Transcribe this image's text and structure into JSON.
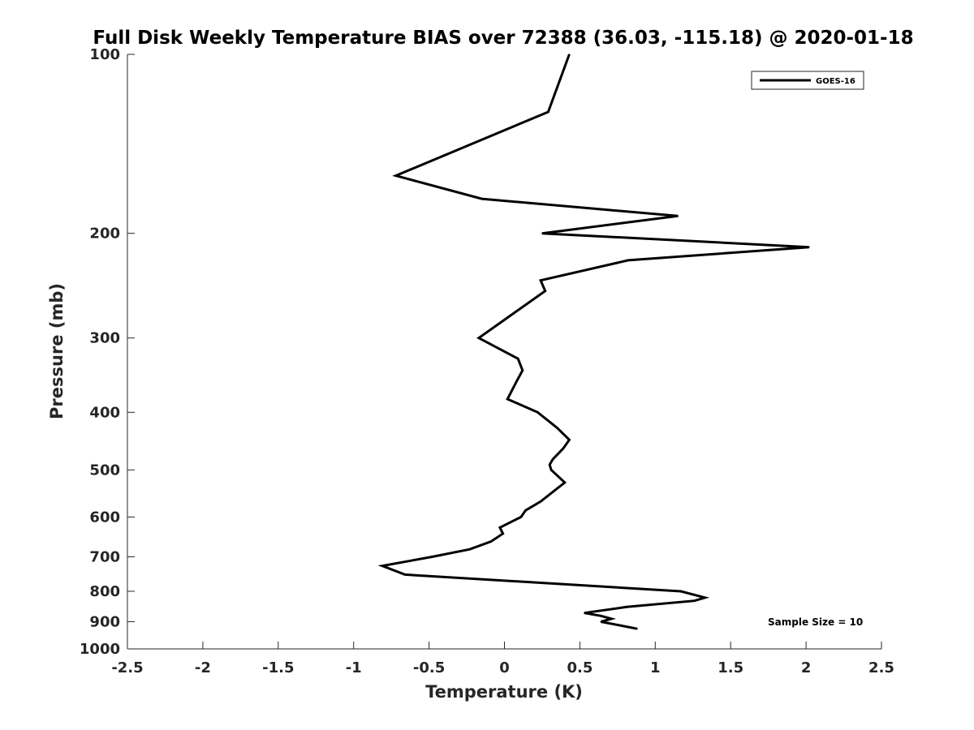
{
  "chart_data": {
    "type": "line",
    "title": "Full Disk Weekly Temperature BIAS over 72388 (36.03, -115.18) @ 2020-01-18",
    "xlabel": "Temperature (K)",
    "ylabel": "Pressure (mb)",
    "xlim": [
      -2.5,
      2.5
    ],
    "ylim": [
      1000,
      100
    ],
    "y_scale": "log",
    "y_reversed": true,
    "grid": false,
    "x_ticks": [
      -2.5,
      -2,
      -1.5,
      -1,
      -0.5,
      0,
      0.5,
      1,
      1.5,
      2,
      2.5
    ],
    "x_tick_labels": [
      "-2.5",
      "-2",
      "-1.5",
      "-1",
      "-0.5",
      "0",
      "0.5",
      "1",
      "1.5",
      "2",
      "2.5"
    ],
    "y_ticks": [
      100,
      200,
      300,
      400,
      500,
      600,
      700,
      800,
      900,
      1000
    ],
    "y_tick_labels": [
      "100",
      "200",
      "300",
      "400",
      "500",
      "600",
      "700",
      "800",
      "900",
      "1000"
    ],
    "legend": {
      "placement": "top-right",
      "entries": [
        "GOES-16"
      ]
    },
    "annotation": "Sample Size = 10",
    "series": [
      {
        "name": "GOES-16",
        "color": "#000000",
        "x": [
          0.43,
          0.29,
          -0.72,
          -0.15,
          1.15,
          0.25,
          2.02,
          0.82,
          0.24,
          0.27,
          -0.17,
          0.09,
          0.12,
          0.08,
          0.02,
          0.22,
          0.35,
          0.43,
          0.39,
          0.32,
          0.3,
          0.31,
          0.4,
          0.24,
          0.14,
          0.11,
          -0.03,
          -0.01,
          -0.09,
          -0.23,
          -0.48,
          -0.81,
          -0.66,
          1.17,
          1.33,
          1.26,
          0.81,
          0.53,
          0.64,
          0.71,
          0.64,
          0.88
        ],
        "y": [
          100,
          125,
          160,
          175,
          187,
          200,
          211,
          222,
          240,
          250,
          300,
          325,
          340,
          355,
          380,
          400,
          425,
          445,
          460,
          480,
          490,
          500,
          525,
          565,
          585,
          600,
          625,
          640,
          660,
          680,
          700,
          725,
          750,
          800,
          820,
          830,
          850,
          870,
          880,
          890,
          900,
          925
        ]
      }
    ]
  }
}
